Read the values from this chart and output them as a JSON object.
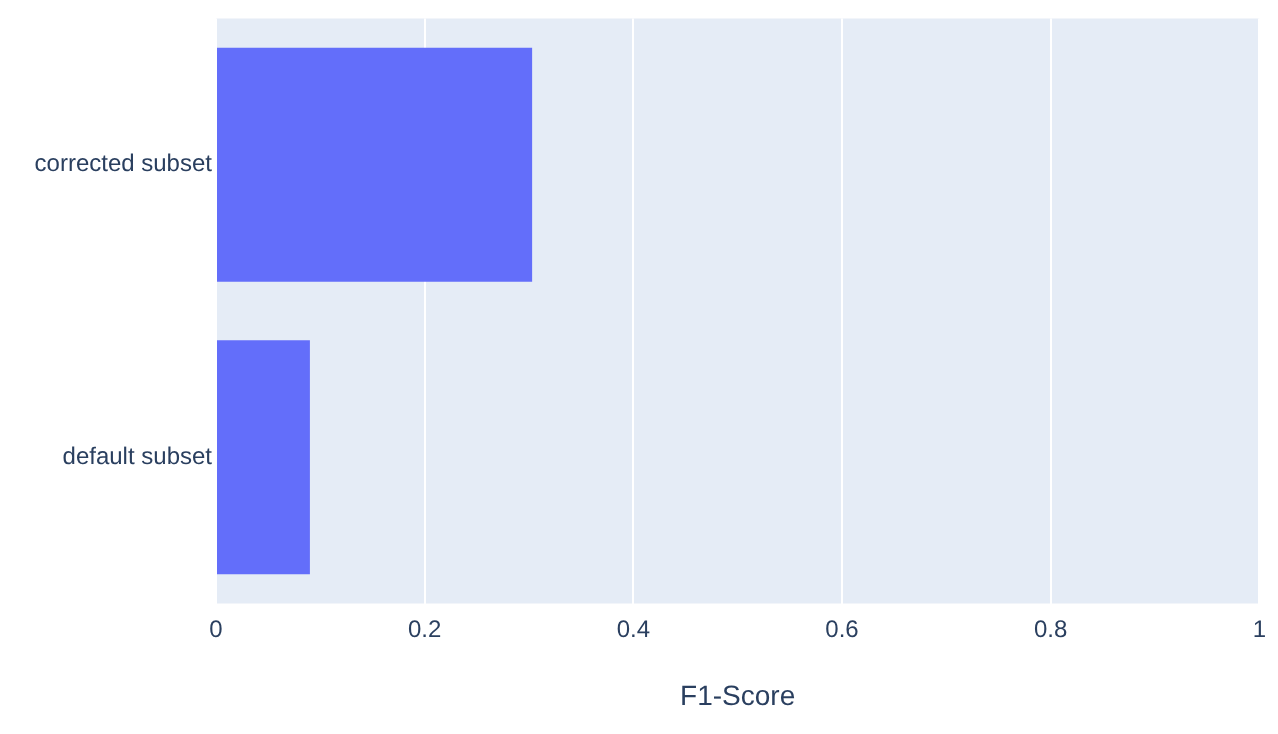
{
  "chart_data": {
    "type": "bar",
    "orientation": "horizontal",
    "xlabel": "F1-Score",
    "categories": [
      "corrected subset",
      "default subset"
    ],
    "values": [
      0.303,
      0.09
    ],
    "color": "#636efa",
    "xlim": [
      0,
      1
    ],
    "xticks": [
      0,
      0.2,
      0.4,
      0.6,
      0.8,
      1
    ],
    "grid": "x",
    "legend": false
  }
}
